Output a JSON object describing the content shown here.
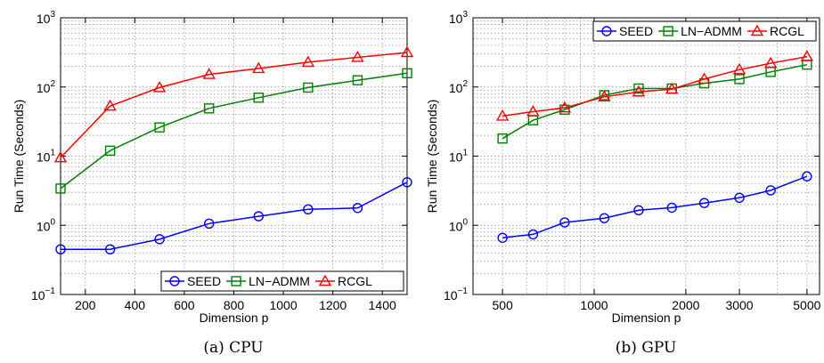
{
  "chart_data": [
    {
      "type": "line",
      "caption": "(a) CPU",
      "xlabel": "Dimension p",
      "ylabel": "Run Time (Seconds)",
      "xscale": "linear",
      "yscale": "log",
      "xlim": [
        100,
        1500
      ],
      "ylim": [
        0.1,
        1000
      ],
      "xticks": [
        200,
        400,
        600,
        800,
        1000,
        1200,
        1400
      ],
      "xtick_labels": [
        "200",
        "400",
        "600",
        "800",
        "1000",
        "1200",
        "1400"
      ],
      "yticks": [
        0.1,
        1,
        10,
        100,
        1000
      ],
      "ytick_exponents": [
        "−1",
        "0",
        "1",
        "2",
        "3"
      ],
      "ytick_base": "10",
      "grid": true,
      "legend_position": "bottom-right",
      "x": [
        100,
        300,
        500,
        700,
        900,
        1100,
        1300,
        1500
      ],
      "series": [
        {
          "name": "SEED",
          "color": "#0000ff",
          "marker": "circle",
          "values": [
            0.45,
            0.45,
            0.63,
            1.06,
            1.35,
            1.7,
            1.78,
            4.2
          ]
        },
        {
          "name": "LN−ADMM",
          "color": "#008000",
          "marker": "square",
          "values": [
            3.4,
            12,
            26,
            49,
            70,
            98,
            125,
            158
          ]
        },
        {
          "name": "RCGL",
          "color": "#ff0000",
          "marker": "triangle",
          "values": [
            9.5,
            53,
            98,
            152,
            185,
            228,
            268,
            315
          ]
        }
      ]
    },
    {
      "type": "line",
      "caption": "(b) GPU",
      "xlabel": "Dimension p",
      "ylabel": "Run Time (Seconds)",
      "xscale": "log",
      "yscale": "log",
      "xlim": [
        400,
        5500
      ],
      "ylim": [
        0.1,
        1000
      ],
      "xticks": [
        500,
        1000,
        2000,
        3000,
        5000
      ],
      "xtick_labels": [
        "500",
        "1000",
        "2000",
        "3000",
        "5000"
      ],
      "yticks": [
        0.1,
        1,
        10,
        100,
        1000
      ],
      "ytick_exponents": [
        "−1",
        "0",
        "1",
        "2",
        "3"
      ],
      "ytick_base": "10",
      "grid": true,
      "legend_position": "top-right",
      "x": [
        500,
        630,
        800,
        1080,
        1400,
        1800,
        2300,
        3000,
        3800,
        5000
      ],
      "series": [
        {
          "name": "SEED",
          "color": "#0000ff",
          "marker": "circle",
          "values": [
            0.66,
            0.74,
            1.1,
            1.27,
            1.65,
            1.8,
            2.1,
            2.5,
            3.2,
            5.1
          ]
        },
        {
          "name": "LN−ADMM",
          "color": "#008000",
          "marker": "square",
          "values": [
            18,
            33,
            47,
            76,
            95,
            95,
            113,
            130,
            165,
            210
          ]
        },
        {
          "name": "RCGL",
          "color": "#ff0000",
          "marker": "triangle",
          "values": [
            38,
            44,
            50,
            72,
            85,
            93,
            130,
            178,
            220,
            275
          ]
        }
      ]
    }
  ]
}
